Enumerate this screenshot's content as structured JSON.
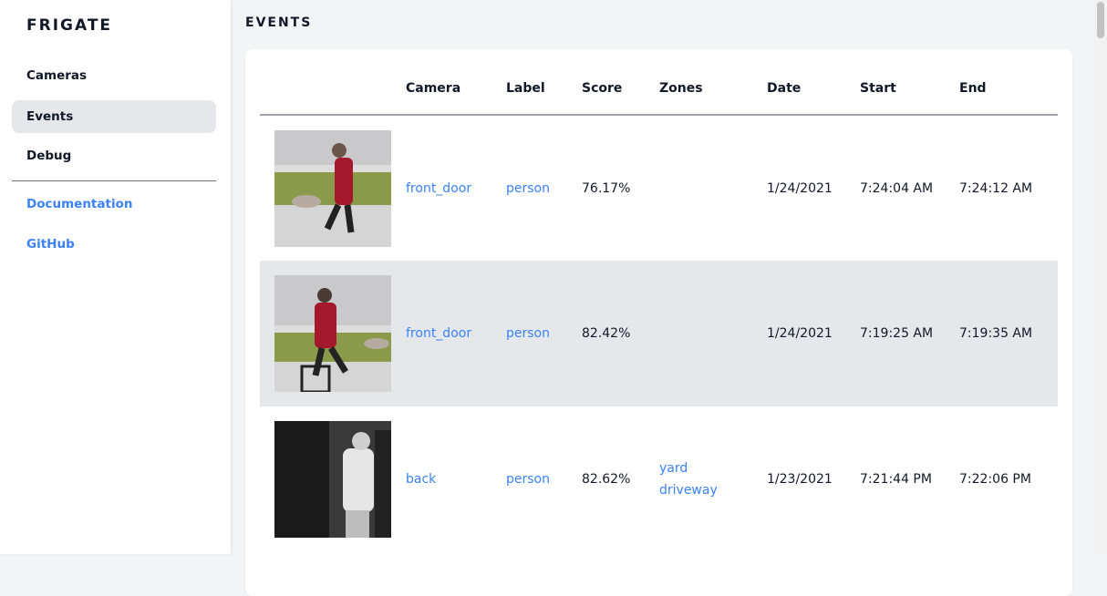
{
  "sidebar": {
    "brand": "FRIGATE",
    "items": [
      {
        "label": "Cameras"
      },
      {
        "label": "Events"
      },
      {
        "label": "Debug"
      }
    ],
    "links": [
      {
        "label": "Documentation"
      },
      {
        "label": "GitHub"
      }
    ]
  },
  "main": {
    "title": "EVENTS",
    "columns": [
      "",
      "Camera",
      "Label",
      "Score",
      "Zones",
      "Date",
      "Start",
      "End"
    ],
    "rows": [
      {
        "camera": "front_door",
        "label": "person",
        "score": "76.17%",
        "zones": [
          "",
          ""
        ],
        "date": "1/24/2021",
        "start": "7:24:04 AM",
        "end": "7:24:12 AM"
      },
      {
        "camera": "front_door",
        "label": "person",
        "score": "82.42%",
        "zones": [
          "",
          ""
        ],
        "date": "1/24/2021",
        "start": "7:19:25 AM",
        "end": "7:19:35 AM"
      },
      {
        "camera": "back",
        "label": "person",
        "score": "82.62%",
        "zones": [
          "yard",
          "driveway"
        ],
        "date": "1/23/2021",
        "start": "7:21:44 PM",
        "end": "7:22:06 PM"
      }
    ]
  },
  "colors": {
    "accent": "#3b82f6",
    "active": "#e5e7eb"
  }
}
